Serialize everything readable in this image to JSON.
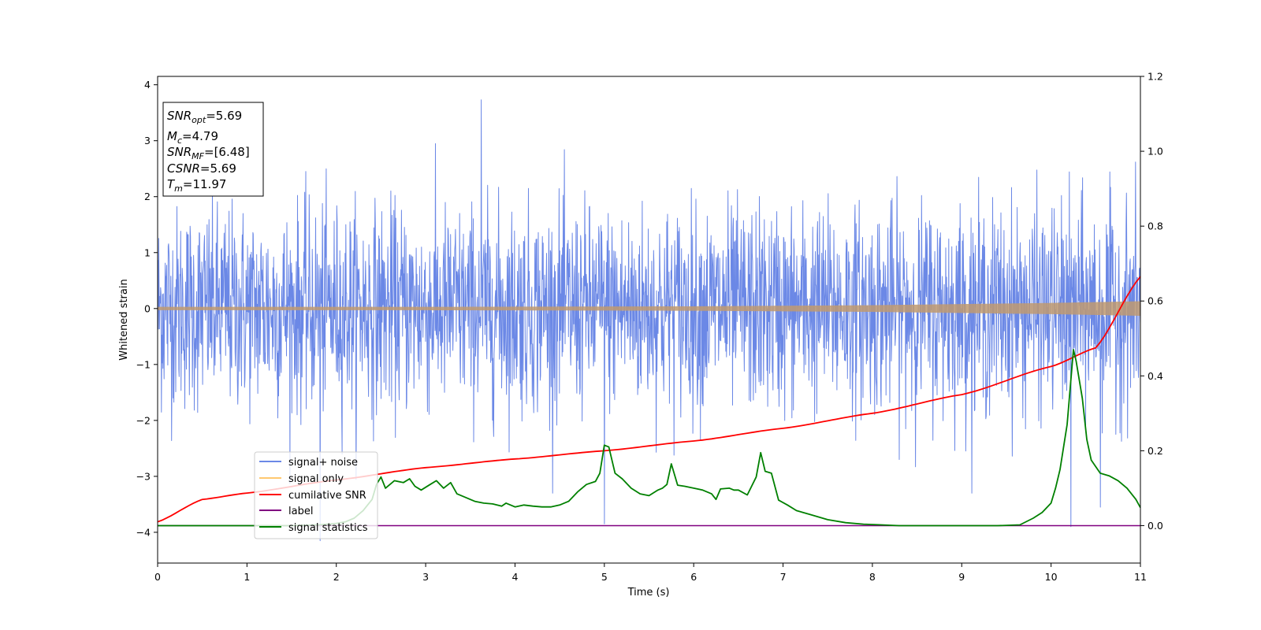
{
  "chart_data": {
    "type": "line",
    "xlabel": "Time (s)",
    "ylabel": "Whitened strain",
    "xlim": [
      0,
      11
    ],
    "ylim_left": [
      -4.55,
      4.15
    ],
    "ylim_right": [
      -0.1,
      1.2
    ],
    "x_ticks": [
      "0",
      "1",
      "2",
      "3",
      "4",
      "5",
      "6",
      "7",
      "8",
      "9",
      "10",
      "11"
    ],
    "y_ticks_left": [
      "4",
      "3",
      "2",
      "1",
      "0",
      "−1",
      "−2",
      "−3",
      "−4"
    ],
    "y_ticks_right": [
      "0.0",
      "0.2",
      "0.4",
      "0.6",
      "0.8",
      "1.0",
      "1.2"
    ],
    "grid": false,
    "legend_position": "lower-left",
    "info_box": {
      "snr_opt": "=5.69",
      "mc": "=4.79",
      "snr_mf": "=[6.48]",
      "csnr": "=5.69",
      "tm": "=11.97"
    },
    "series": [
      {
        "name": "signal+ noise",
        "color": "#6b88e6",
        "axis": "left",
        "description": "noisy whitened strain, roughly within -2.5..2.5 with spikes to about +3.7 and -4.1",
        "noise_std": 0.9,
        "spikes": [
          [
            1.82,
            -4.15
          ],
          [
            3.62,
            3.73
          ],
          [
            5.0,
            -3.85
          ],
          [
            10.22,
            -3.9
          ],
          [
            10.55,
            -3.55
          ]
        ]
      },
      {
        "name": "signal only",
        "color": "#ffc870",
        "axis": "left",
        "amplitude_envelope": [
          [
            0,
            0.03
          ],
          [
            3,
            0.03
          ],
          [
            6,
            0.04
          ],
          [
            8,
            0.06
          ],
          [
            10,
            0.1
          ],
          [
            11,
            0.13
          ]
        ]
      },
      {
        "name": "cumilative SNR",
        "color": "#ff0000",
        "axis": "right",
        "x": [
          0,
          0.5,
          1,
          2,
          3,
          4,
          5,
          6,
          7,
          8,
          9,
          10,
          10.5,
          11
        ],
        "y": [
          0.01,
          0.07,
          0.087,
          0.122,
          0.155,
          0.178,
          0.2,
          0.226,
          0.26,
          0.3,
          0.35,
          0.425,
          0.475,
          0.665
        ]
      },
      {
        "name": "label",
        "color": "#800080",
        "axis": "right",
        "x": [
          0,
          11
        ],
        "y": [
          0,
          0
        ]
      },
      {
        "name": "signal statistics",
        "color": "#008000",
        "axis": "right",
        "x": [
          0,
          0.5,
          1,
          1.5,
          1.8,
          2.0,
          2.1,
          2.2,
          2.3,
          2.4,
          2.45,
          2.5,
          2.55,
          2.65,
          2.75,
          2.82,
          2.88,
          2.95,
          3.05,
          3.12,
          3.2,
          3.28,
          3.35,
          3.45,
          3.55,
          3.65,
          3.75,
          3.85,
          3.9,
          4.0,
          4.1,
          4.2,
          4.3,
          4.4,
          4.5,
          4.6,
          4.7,
          4.8,
          4.9,
          4.95,
          5.0,
          5.05,
          5.12,
          5.2,
          5.3,
          5.4,
          5.5,
          5.6,
          5.65,
          5.7,
          5.75,
          5.82,
          5.9,
          6.0,
          6.1,
          6.2,
          6.25,
          6.3,
          6.4,
          6.45,
          6.5,
          6.6,
          6.7,
          6.75,
          6.8,
          6.87,
          6.95,
          7.05,
          7.15,
          7.3,
          7.5,
          7.7,
          7.9,
          8.1,
          8.3,
          8.6,
          9.0,
          9.4,
          9.65,
          9.8,
          9.9,
          10.0,
          10.05,
          10.1,
          10.18,
          10.25,
          10.28,
          10.35,
          10.4,
          10.45,
          10.55,
          10.65,
          10.75,
          10.85,
          10.95,
          11.0
        ],
        "y": [
          0.0,
          0.0,
          0.0,
          0.0,
          0.002,
          0.006,
          0.01,
          0.02,
          0.04,
          0.07,
          0.11,
          0.13,
          0.1,
          0.12,
          0.115,
          0.125,
          0.105,
          0.095,
          0.11,
          0.12,
          0.1,
          0.115,
          0.085,
          0.075,
          0.065,
          0.06,
          0.058,
          0.052,
          0.06,
          0.05,
          0.055,
          0.052,
          0.05,
          0.05,
          0.055,
          0.065,
          0.09,
          0.11,
          0.118,
          0.14,
          0.215,
          0.21,
          0.14,
          0.125,
          0.1,
          0.085,
          0.08,
          0.095,
          0.1,
          0.11,
          0.165,
          0.108,
          0.105,
          0.1,
          0.095,
          0.085,
          0.07,
          0.098,
          0.1,
          0.095,
          0.095,
          0.082,
          0.13,
          0.195,
          0.145,
          0.14,
          0.068,
          0.055,
          0.04,
          0.03,
          0.016,
          0.008,
          0.004,
          0.002,
          0.0,
          0.0,
          0.0,
          0.0,
          0.002,
          0.02,
          0.035,
          0.06,
          0.1,
          0.15,
          0.27,
          0.47,
          0.44,
          0.34,
          0.23,
          0.175,
          0.14,
          0.133,
          0.12,
          0.1,
          0.07,
          0.048
        ]
      }
    ]
  }
}
